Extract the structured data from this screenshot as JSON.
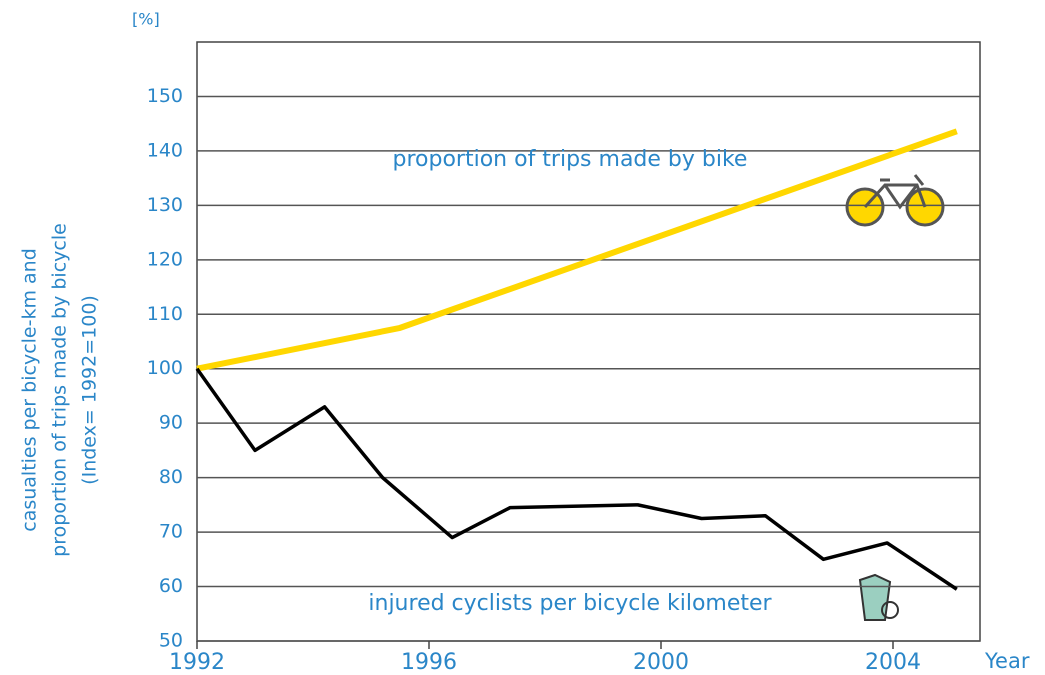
{
  "chart_data": {
    "type": "line",
    "unit_label": "[%]",
    "y_label": [
      "casualties per bicycle-km and",
      "proportion of trips made by bicycle",
      "(Index= 1992=100)"
    ],
    "x_label": "Year",
    "xlim": [
      1992,
      2005.5
    ],
    "xticks": [
      1992,
      1996,
      2000,
      2004
    ],
    "ylim": [
      50,
      160
    ],
    "yticks": [
      50,
      60,
      70,
      80,
      90,
      100,
      110,
      120,
      130,
      140,
      150
    ],
    "grid": true,
    "series": [
      {
        "name": "proportion of trips made by bike",
        "color": "#ffd700",
        "x": [
          1992,
          1995.5,
          2005.1
        ],
        "values": [
          100,
          107.5,
          143.6
        ]
      },
      {
        "name": "injured cyclists per bicycle kilometer",
        "color": "#000000",
        "x": [
          1992,
          1993,
          1994.2,
          1995.2,
          1996.4,
          1997.4,
          1999.6,
          2000.7,
          2001.8,
          2002.8,
          2003.9,
          2005.1
        ],
        "values": [
          100,
          85,
          93,
          80,
          69,
          74.5,
          75,
          72.5,
          73,
          65,
          68,
          59.5
        ]
      }
    ]
  }
}
